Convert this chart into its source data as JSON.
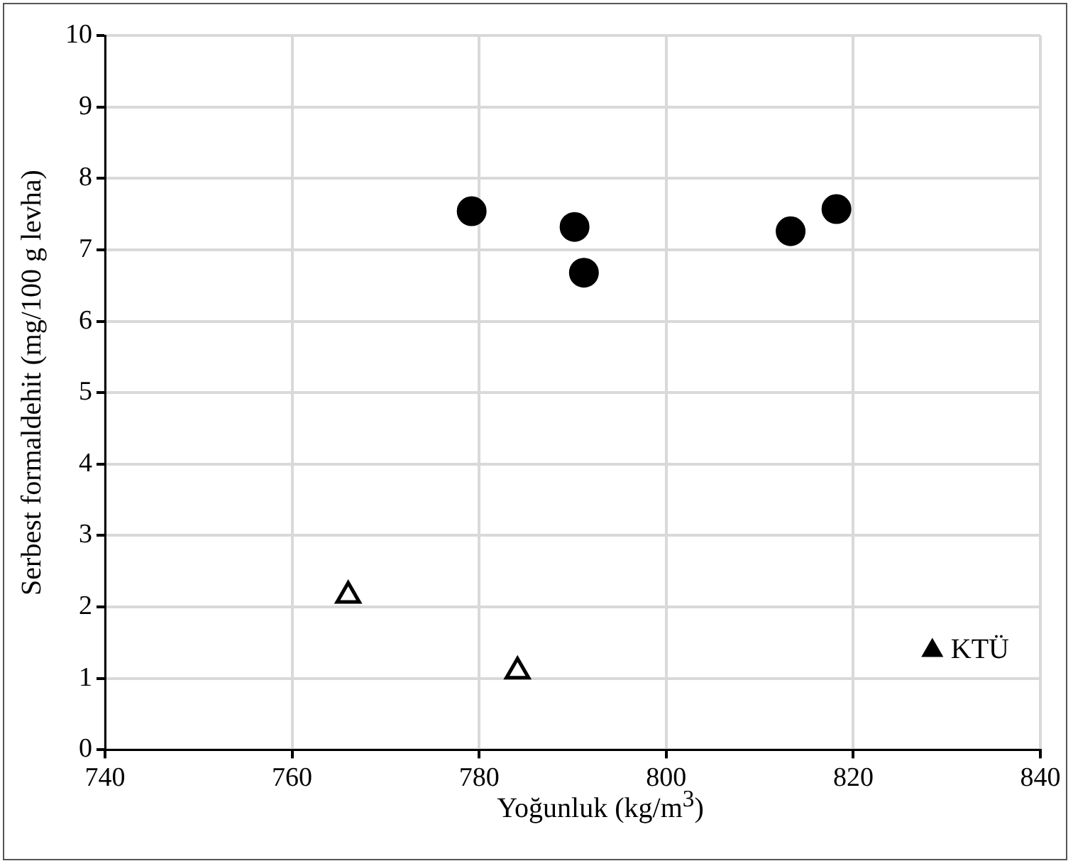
{
  "chart_data": {
    "type": "scatter",
    "xlabel": "Yoğunluk (kg/m$^{3}$)",
    "ylabel": "Serbest formaldehit (mg/100 g levha)",
    "xlim": [
      740,
      840
    ],
    "xticks": [
      740,
      760,
      780,
      800,
      820,
      840
    ],
    "ylim": [
      0,
      10
    ],
    "yticks": [
      0,
      1,
      2,
      3,
      4,
      5,
      6,
      7,
      8,
      9,
      10
    ],
    "grid": true,
    "legend": "bottom right",
    "series": [
      {
        "color": "#000000",
        "marker": "circle",
        "x": [
          779.2,
          790.2,
          791.2,
          813.3,
          818.2
        ],
        "values": [
          7.54,
          7.32,
          6.68,
          7.26,
          7.57
        ]
      },
      {
        "name": "KTÜ",
        "color": "#000000",
        "marker": "triangle",
        "x": [
          766.0,
          784.1
        ],
        "values": [
          2.16,
          1.1
        ]
      }
    ]
  }
}
